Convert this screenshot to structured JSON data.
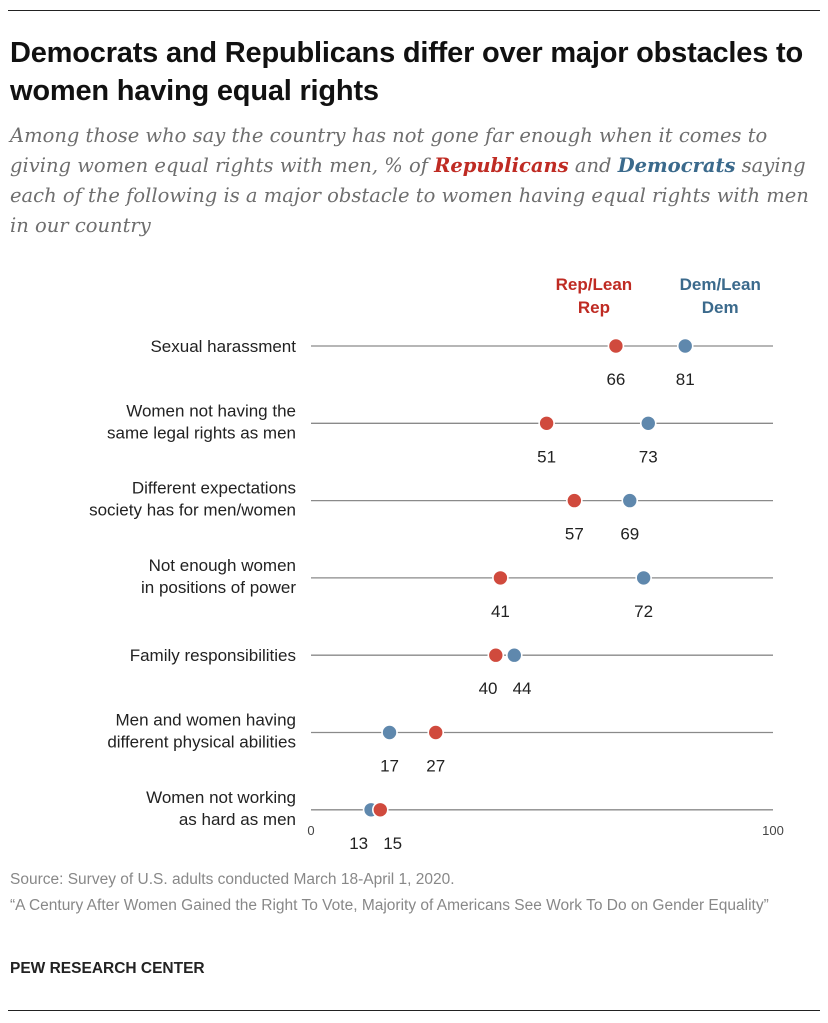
{
  "title": "Democrats and Republicans differ over major obstacles to women having equal rights",
  "subtitle": {
    "part1": "Among those who say the country has not gone far enough when it comes to giving women equal rights with men, % of ",
    "rep": "Republicans",
    "part2": " and ",
    "dem": "Democrats",
    "part3": " saying each of the following is a major obstacle to women having equal rights with men in our country"
  },
  "colors": {
    "rep": "#d04a3d",
    "dem": "#5f88ad",
    "rep_text": "#bf2b23",
    "dem_text": "#3b6a8c",
    "line": "#8a8a8a"
  },
  "chart_data": {
    "type": "dot",
    "xlim": [
      0,
      100
    ],
    "axis_ticks": [
      "0",
      "100"
    ],
    "series": [
      {
        "name": "Rep/Lean Rep",
        "label_lines": [
          "Rep/Lean",
          "Rep"
        ],
        "values": [
          66,
          51,
          57,
          41,
          40,
          27,
          15
        ]
      },
      {
        "name": "Dem/Lean Dem",
        "label_lines": [
          "Dem/Lean",
          "Dem"
        ],
        "values": [
          81,
          73,
          69,
          72,
          44,
          17,
          13
        ]
      }
    ],
    "categories": [
      [
        "Sexual harassment"
      ],
      [
        "Women not having the",
        "same legal rights as men"
      ],
      [
        "Different expectations",
        "society has for men/women"
      ],
      [
        "Not enough women",
        "in positions of power"
      ],
      [
        "Family responsibilities"
      ],
      [
        "Men and women having",
        "different  physical abilities"
      ],
      [
        "Women not working",
        "as hard as men"
      ]
    ]
  },
  "footer": {
    "source": "Source: Survey of U.S. adults conducted March 18-April 1, 2020.",
    "report": "“A Century After Women Gained the Right To Vote, Majority of Americans See Work To Do on Gender Equality”",
    "brand": "PEW RESEARCH CENTER"
  }
}
